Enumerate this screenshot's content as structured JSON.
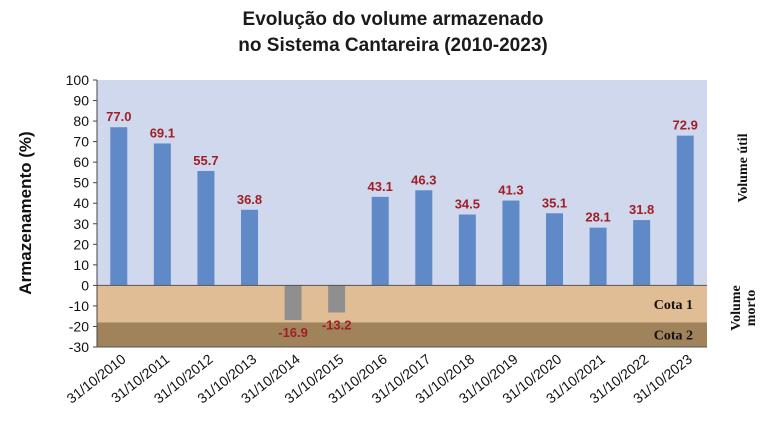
{
  "chart_data": {
    "type": "bar",
    "title_lines": [
      "Evolução do volume armazenado",
      "no Sistema Cantareira (2010-2023)"
    ],
    "ylabel": "Armazenamento (%)",
    "ylim": [
      -30,
      100
    ],
    "yticks": [
      100,
      90,
      80,
      70,
      60,
      50,
      40,
      30,
      20,
      10,
      0,
      -10,
      -20,
      -30
    ],
    "grid": false,
    "categories": [
      "31/10/2010",
      "31/10/2011",
      "31/10/2012",
      "31/10/2013",
      "31/10/2014",
      "31/10/2015",
      "31/10/2016",
      "31/10/2017",
      "31/10/2018",
      "31/10/2019",
      "31/10/2020",
      "31/10/2021",
      "31/10/2022",
      "31/10/2023"
    ],
    "values": [
      77.0,
      69.1,
      55.7,
      36.8,
      -16.9,
      -13.2,
      43.1,
      46.3,
      34.5,
      41.3,
      35.1,
      28.1,
      31.8,
      72.9
    ],
    "data_labels": [
      "77.0",
      "69.1",
      "55.7",
      "36.8",
      "-16.9",
      "-13.2",
      "43.1",
      "46.3",
      "34.5",
      "41.3",
      "35.1",
      "28.1",
      "31.8",
      "72.9"
    ],
    "bands": [
      {
        "label": "Cota 1",
        "from": -18,
        "to": 0,
        "color": "#e1bd96"
      },
      {
        "label": "Cota 2",
        "from": -30,
        "to": -18,
        "color": "#a1835b"
      }
    ],
    "side_labels": {
      "upper": "Volume útil",
      "lower_line1": "Volume",
      "lower_line2": "morto"
    },
    "colors": {
      "positive_bar": "#5f8ac7",
      "negative_bar": "#8f8f8f",
      "plot_background": "#cfd8ec",
      "data_label": "#a01e26"
    }
  }
}
